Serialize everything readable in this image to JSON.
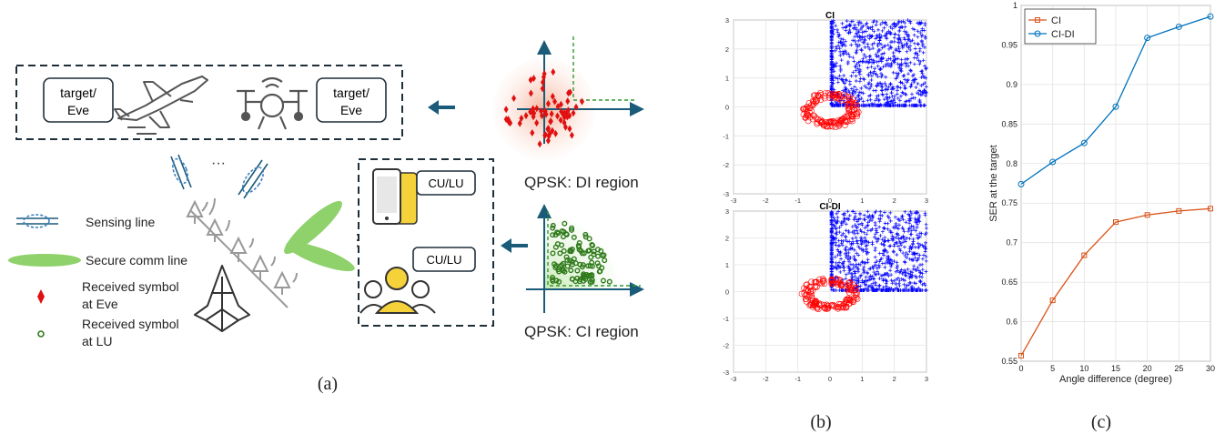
{
  "panel_a": {
    "uav_box": {
      "left_label": [
        "target/",
        "Eve"
      ],
      "right_label": [
        "target/",
        "Eve"
      ]
    },
    "users_box": {
      "label_top": "CU/LU",
      "label_bottom": "CU/LU",
      "dots": "⋮"
    },
    "ellipsis": "···",
    "legend": {
      "sensing": "Sensing line",
      "secure": "Secure comm line",
      "eve": [
        "Received symbol",
        "at Eve"
      ],
      "lu": [
        "Received symbol",
        "at LU"
      ]
    },
    "qpsk_di": "QPSK: DI region",
    "qpsk_ci": "QPSK: CI region",
    "caption": "(a)",
    "colors": {
      "arrow": "#1b5b7a",
      "eve": "#e01010",
      "lu": "#2f7a1a",
      "secure": "#8fd16b",
      "sensing": "#3a7fc0",
      "gray": "#555555"
    }
  },
  "panel_b": {
    "caption": "(b)",
    "chart_data": [
      {
        "type": "scatter",
        "title": "CI",
        "xlim": [
          -3,
          3
        ],
        "ylim": [
          -3,
          3
        ],
        "xticks": [
          -3,
          -2,
          -1,
          0,
          1,
          2,
          3
        ],
        "yticks": [
          -3,
          -2,
          -1,
          0,
          1,
          2,
          3
        ],
        "grid": true,
        "series": [
          {
            "marker": "+",
            "color": "#0000ff",
            "region": {
              "x": [
                0.05,
                3
              ],
              "y": [
                0.05,
                3
              ]
            }
          },
          {
            "marker": "o",
            "color": "#ff0000",
            "ring": {
              "center": [
                0,
                0
              ],
              "radius": [
                0.6,
                0.95
              ]
            }
          }
        ]
      },
      {
        "type": "scatter",
        "title": "CI-DI",
        "xlim": [
          -3,
          3
        ],
        "ylim": [
          -3,
          3
        ],
        "xticks": [
          -3,
          -2,
          -1,
          0,
          1,
          2,
          3
        ],
        "yticks": [
          -3,
          -2,
          -1,
          0,
          1,
          2,
          3
        ],
        "grid": true,
        "series": [
          {
            "marker": "+",
            "color": "#0000ff",
            "region": {
              "x": [
                0.05,
                3
              ],
              "y": [
                0.05,
                3
              ]
            }
          },
          {
            "marker": "o",
            "color": "#ff0000",
            "ring": {
              "center": [
                0,
                0
              ],
              "radius": [
                0.6,
                0.95
              ]
            }
          }
        ]
      }
    ]
  },
  "panel_c": {
    "caption": "(c)",
    "chart_data": {
      "type": "line",
      "x": [
        0,
        5,
        10,
        15,
        20,
        25,
        30
      ],
      "xlabel": "Angle difference (degree)",
      "ylabel": "SER at the target",
      "xlim": [
        0,
        30
      ],
      "ylim": [
        0.55,
        1
      ],
      "xticks": [
        0,
        5,
        10,
        15,
        20,
        25,
        30
      ],
      "yticks": [
        0.55,
        0.6,
        0.65,
        0.7,
        0.75,
        0.8,
        0.85,
        0.9,
        0.95,
        1
      ],
      "grid": true,
      "legend": "top-left",
      "series": [
        {
          "name": "CI",
          "marker": "square",
          "color": "#d9541a",
          "values": [
            0.557,
            0.627,
            0.684,
            0.726,
            0.735,
            0.74,
            0.743
          ]
        },
        {
          "name": "CI-DI",
          "marker": "circle",
          "color": "#0072bd",
          "values": [
            0.774,
            0.802,
            0.826,
            0.872,
            0.959,
            0.973,
            0.986
          ]
        }
      ]
    }
  }
}
